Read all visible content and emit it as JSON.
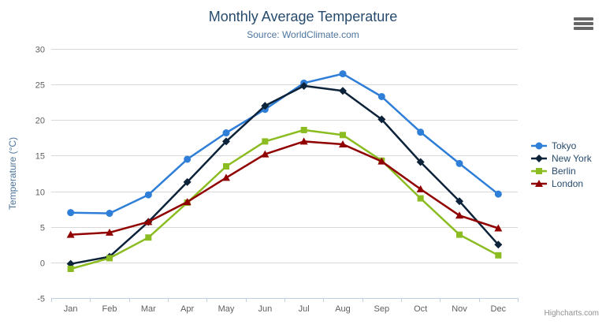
{
  "credits": {
    "label": "Highcharts.com"
  },
  "menu": {
    "icon": "hamburger-menu-icon"
  },
  "colors": {
    "title": "#274b6d",
    "subtitle": "#4d759e",
    "axis_title": "#4d759e",
    "axis_label": "#606060",
    "grid": "#d8d8d8",
    "axis_line": "#c0d0e0",
    "legend_text": "#274b6d",
    "credits_text": "#909090"
  },
  "chart_data": {
    "type": "line",
    "title": "Monthly Average Temperature",
    "subtitle": "Source: WorldClimate.com",
    "categories": [
      "Jan",
      "Feb",
      "Mar",
      "Apr",
      "May",
      "Jun",
      "Jul",
      "Aug",
      "Sep",
      "Oct",
      "Nov",
      "Dec"
    ],
    "xlabel": "",
    "ylabel": "Temperature (°C)",
    "ylim": [
      -5,
      30
    ],
    "tick_interval": 5,
    "grid": true,
    "legend_position": "right",
    "series": [
      {
        "name": "Tokyo",
        "color": "#2f7ed8",
        "marker": "circle",
        "values": [
          7.0,
          6.9,
          9.5,
          14.5,
          18.2,
          21.5,
          25.2,
          26.5,
          23.3,
          18.3,
          13.9,
          9.6
        ]
      },
      {
        "name": "New York",
        "color": "#0d233a",
        "marker": "diamond",
        "values": [
          -0.2,
          0.8,
          5.7,
          11.3,
          17.0,
          22.0,
          24.8,
          24.1,
          20.1,
          14.1,
          8.6,
          2.5
        ]
      },
      {
        "name": "Berlin",
        "color": "#8bbc21",
        "marker": "square",
        "values": [
          -0.9,
          0.6,
          3.5,
          8.4,
          13.5,
          17.0,
          18.6,
          17.9,
          14.3,
          9.0,
          3.9,
          1.0
        ]
      },
      {
        "name": "London",
        "color": "#910000",
        "marker": "triangle",
        "values": [
          3.9,
          4.2,
          5.7,
          8.5,
          11.9,
          15.2,
          17.0,
          16.6,
          14.2,
          10.3,
          6.6,
          4.8
        ]
      }
    ]
  }
}
